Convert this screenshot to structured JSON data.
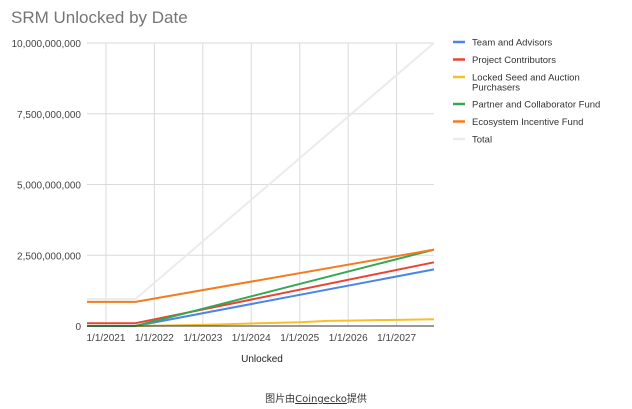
{
  "chart_data": {
    "type": "line",
    "title": "SRM Unlocked by Date",
    "xlabel": "Unlocked",
    "ylabel": "",
    "x_ticks": [
      "1/1/2021",
      "1/1/2022",
      "1/1/2023",
      "1/1/2024",
      "1/1/2025",
      "1/1/2026",
      "1/1/2027"
    ],
    "y_ticks": [
      "0",
      "2,500,000,000",
      "5,000,000,000",
      "7,500,000,000",
      "10,000,000,000"
    ],
    "xlim": [
      "2020-08-11",
      "2027-10-10"
    ],
    "ylim": [
      0,
      10000000000
    ],
    "grid": true,
    "legend_position": "right",
    "series": [
      {
        "name": "Team and Advisors",
        "color": "#4a86e8",
        "points": [
          [
            "2020-08-11",
            0
          ],
          [
            "2021-08-11",
            0
          ],
          [
            "2027-10-10",
            2000000000
          ]
        ]
      },
      {
        "name": "Project Contributors",
        "color": "#e84435",
        "points": [
          [
            "2020-08-11",
            100000000
          ],
          [
            "2021-08-11",
            100000000
          ],
          [
            "2027-10-10",
            2250000000
          ]
        ]
      },
      {
        "name": "Locked Seed and Auction Purchasers",
        "color": "#f6c026",
        "points": [
          [
            "2020-08-11",
            0
          ],
          [
            "2021-08-11",
            0
          ],
          [
            "2023-01-01",
            40000000
          ],
          [
            "2024-01-01",
            90000000
          ],
          [
            "2025-01-01",
            130000000
          ],
          [
            "2025-08-01",
            180000000
          ],
          [
            "2026-01-01",
            190000000
          ],
          [
            "2027-10-10",
            240000000
          ]
        ]
      },
      {
        "name": "Partner and Collaborator Fund",
        "color": "#34a853",
        "points": [
          [
            "2020-08-11",
            0
          ],
          [
            "2021-08-11",
            0
          ],
          [
            "2027-10-10",
            2700000000
          ]
        ]
      },
      {
        "name": "Ecosystem Incentive Fund",
        "color": "#f47c20",
        "points": [
          [
            "2020-08-11",
            850000000
          ],
          [
            "2021-08-11",
            850000000
          ],
          [
            "2027-10-10",
            2700000000
          ]
        ]
      },
      {
        "name": "Total",
        "color": "#ebebeb",
        "points": [
          [
            "2020-08-11",
            950000000
          ],
          [
            "2021-08-11",
            950000000
          ],
          [
            "2027-10-10",
            10000000000
          ]
        ]
      }
    ]
  },
  "caption": {
    "prefix": "图片由",
    "link": "Coingecko",
    "suffix": "提供"
  }
}
